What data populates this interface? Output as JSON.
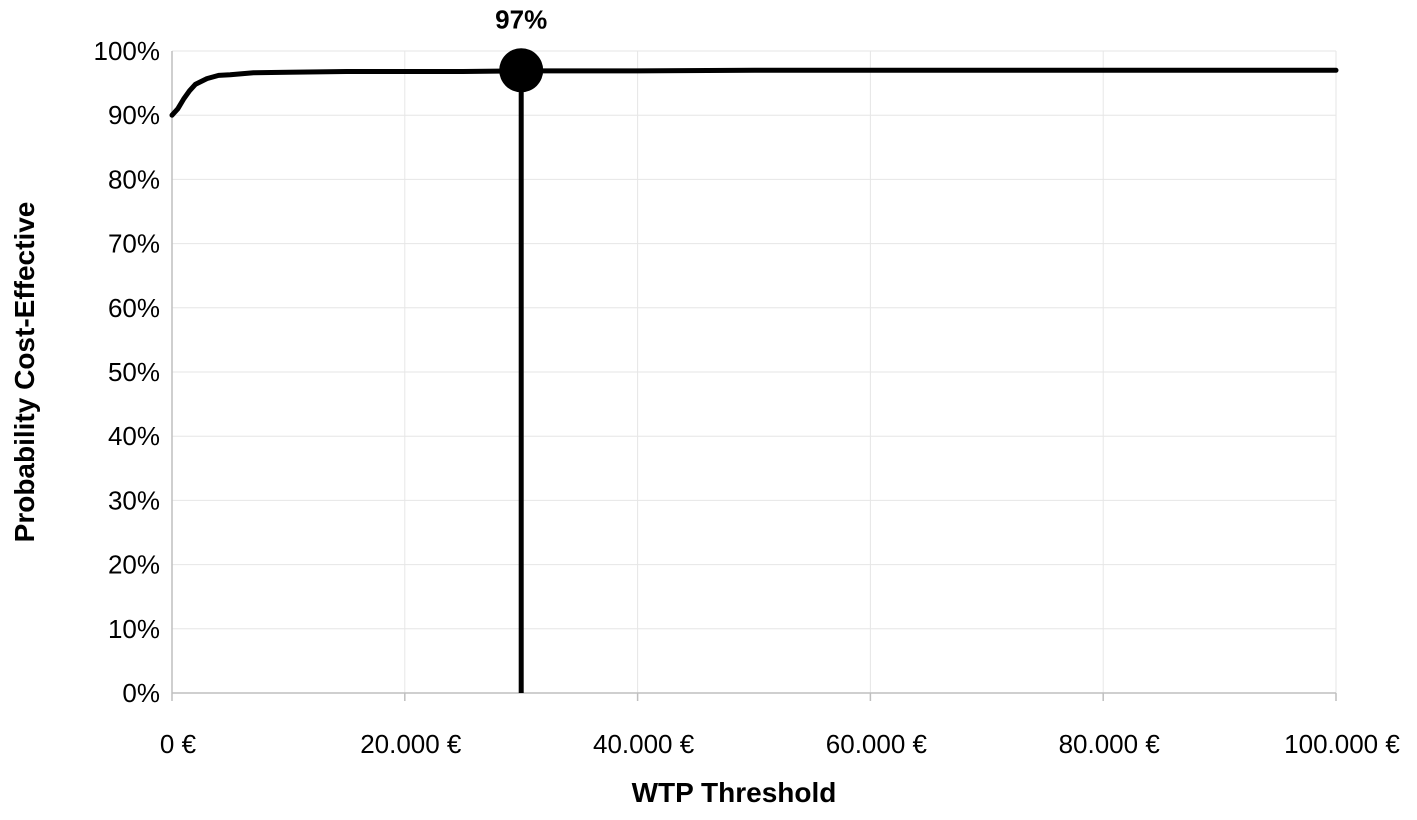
{
  "chart_data": {
    "type": "line",
    "title": "",
    "xlabel": "WTP Threshold",
    "ylabel": "Probability Cost-Effective",
    "xlim": [
      0,
      100000
    ],
    "ylim": [
      0,
      1
    ],
    "grid": true,
    "x_ticks": [
      0,
      20000,
      40000,
      60000,
      80000,
      100000
    ],
    "x_tick_labels": [
      "0 €",
      "20.000 €",
      "40.000 €",
      "60.000 €",
      "80.000 €",
      "100.000 €"
    ],
    "y_ticks": [
      0,
      0.1,
      0.2,
      0.3,
      0.4,
      0.5,
      0.6,
      0.7,
      0.8,
      0.9,
      1.0
    ],
    "y_tick_labels": [
      "0%",
      "10%",
      "20%",
      "30%",
      "40%",
      "50%",
      "60%",
      "70%",
      "80%",
      "90%",
      "100%"
    ],
    "series": [
      {
        "x": [
          0,
          500,
          1000,
          1500,
          2000,
          3000,
          4000,
          5000,
          7000,
          10000,
          15000,
          20000,
          25000,
          30000,
          40000,
          50000,
          60000,
          70000,
          80000,
          90000,
          100000
        ],
        "values": [
          0.9,
          0.91,
          0.925,
          0.938,
          0.948,
          0.957,
          0.962,
          0.963,
          0.966,
          0.967,
          0.968,
          0.968,
          0.968,
          0.969,
          0.969,
          0.97,
          0.97,
          0.97,
          0.97,
          0.97,
          0.97
        ]
      }
    ],
    "highlight": {
      "x": 30000,
      "y": 0.97,
      "label": "97%",
      "vertical_line": true
    },
    "colors": {
      "line": "#000000",
      "grid": "#e6e6e6",
      "axis": "#bfbfbf"
    }
  }
}
